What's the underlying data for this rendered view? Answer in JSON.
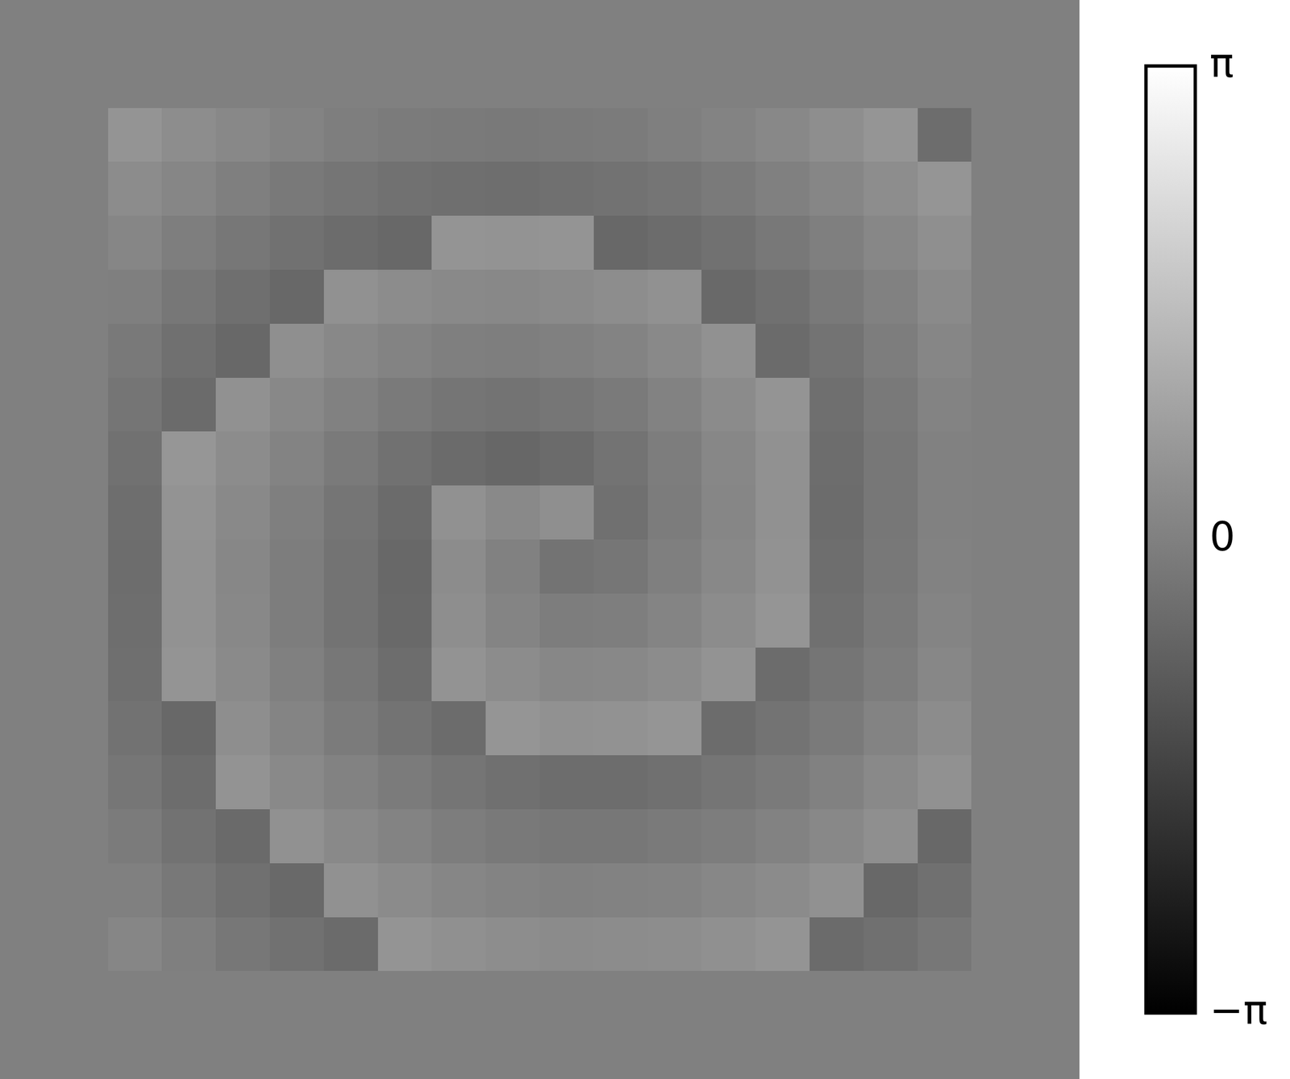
{
  "chart_data": {
    "type": "heatmap",
    "color": "gray",
    "tick_labels": false,
    "zlim": [
      -3.14159,
      3.14159
    ],
    "zticks": [
      {
        "value": -3.14159,
        "label": "−π"
      },
      0,
      {
        "value": 3.14159,
        "label": "π"
      }
    ],
    "z": [
      [
        0,
        0,
        0,
        0,
        0,
        0,
        0,
        0,
        0,
        0,
        0,
        0,
        0,
        0,
        0,
        0,
        0,
        0,
        0,
        0
      ],
      [
        0,
        0,
        0,
        0,
        0,
        0,
        0,
        0,
        0,
        0,
        0,
        0,
        0,
        0,
        0,
        0,
        0,
        0,
        0,
        0
      ],
      [
        0,
        0,
        0.5,
        0.34,
        0.2,
        0.08,
        -0.03,
        -0.1,
        -0.14,
        -0.15,
        -0.14,
        -0.1,
        -0.02,
        0.08,
        0.21,
        0.36,
        0.52,
        -0.46,
        0,
        0
      ],
      [
        0,
        0,
        0.32,
        0.15,
        -0.01,
        -0.15,
        -0.26,
        -0.35,
        -0.4,
        -0.42,
        -0.39,
        -0.34,
        -0.26,
        -0.14,
        0.0,
        0.16,
        0.34,
        0.53,
        0,
        0
      ],
      [
        0,
        0,
        0.15,
        -0.04,
        -0.21,
        -0.36,
        -0.49,
        -0.59,
        0.5,
        0.48,
        0.51,
        -0.58,
        -0.49,
        -0.35,
        -0.19,
        -0.01,
        0.18,
        0.39,
        0,
        0
      ],
      [
        0,
        0,
        -0.01,
        -0.21,
        -0.4,
        -0.57,
        0.43,
        0.32,
        0.24,
        0.22,
        0.26,
        0.33,
        0.44,
        -0.55,
        -0.37,
        -0.17,
        0.04,
        0.26,
        0,
        0
      ],
      [
        0,
        0,
        -0.15,
        -0.37,
        -0.57,
        0.39,
        0.22,
        0.08,
        -0.01,
        -0.04,
        0.0,
        0.09,
        0.24,
        0.42,
        -0.51,
        -0.3,
        -0.07,
        0.16,
        0,
        0
      ],
      [
        0,
        0,
        -0.27,
        -0.5,
        0.43,
        0.22,
        0.03,
        -0.14,
        -0.26,
        -0.31,
        -0.24,
        -0.13,
        0.06,
        0.28,
        0.51,
        -0.4,
        -0.16,
        0.09,
        0,
        0
      ],
      [
        0,
        0,
        -0.36,
        0.55,
        0.31,
        0.08,
        -0.14,
        -0.35,
        -0.51,
        -0.6,
        -0.5,
        -0.31,
        -0.06,
        0.19,
        0.44,
        -0.46,
        -0.21,
        0.04,
        0,
        0
      ],
      [
        0,
        0,
        -0.42,
        0.48,
        0.23,
        -0.02,
        -0.27,
        -0.5,
        0.42,
        0.23,
        0.39,
        -0.37,
        -0.09,
        0.17,
        0.42,
        -0.47,
        -0.22,
        0.04,
        0,
        0
      ],
      [
        0,
        0,
        -0.45,
        0.45,
        0.19,
        -0.06,
        -0.32,
        -0.57,
        0.31,
        0.04,
        -0.31,
        -0.24,
        -0.02,
        0.22,
        0.46,
        -0.44,
        -0.19,
        0.06,
        0,
        0
      ],
      [
        0,
        0,
        -0.44,
        0.46,
        0.21,
        -0.05,
        -0.3,
        -0.55,
        0.35,
        0.12,
        -0.07,
        -0.03,
        0.12,
        0.32,
        0.54,
        -0.38,
        -0.14,
        0.1,
        0,
        0
      ],
      [
        0,
        0,
        -0.4,
        0.5,
        0.26,
        0.02,
        -0.22,
        -0.45,
        0.49,
        0.31,
        0.19,
        0.21,
        0.32,
        0.48,
        -0.48,
        -0.27,
        -0.05,
        0.18,
        0,
        0
      ],
      [
        0,
        0,
        -0.33,
        -0.57,
        0.35,
        0.12,
        -0.1,
        -0.3,
        -0.48,
        0.53,
        0.44,
        0.46,
        0.53,
        -0.49,
        -0.31,
        -0.13,
        0.08,
        0.3,
        0,
        0
      ],
      [
        0,
        0,
        -0.24,
        -0.46,
        0.47,
        0.24,
        0.06,
        -0.12,
        -0.27,
        -0.39,
        -0.46,
        -0.45,
        -0.38,
        -0.27,
        -0.14,
        0.04,
        0.23,
        0.43,
        0,
        0
      ],
      [
        0,
        0,
        -0.12,
        -0.34,
        -0.54,
        0.42,
        0.24,
        0.08,
        -0.05,
        -0.15,
        -0.21,
        -0.2,
        -0.14,
        -0.06,
        0.07,
        0.22,
        0.39,
        -0.57,
        0,
        0
      ],
      [
        0,
        0,
        0.02,
        -0.19,
        -0.38,
        -0.56,
        0.43,
        0.29,
        0.17,
        0.09,
        0.04,
        0.05,
        0.09,
        0.18,
        0.28,
        0.42,
        -0.57,
        -0.39,
        0,
        0
      ],
      [
        0,
        0,
        0.17,
        -0.02,
        -0.2,
        -0.36,
        -0.51,
        0.51,
        0.41,
        0.33,
        0.29,
        0.3,
        0.34,
        0.41,
        0.51,
        -0.51,
        -0.37,
        -0.2,
        0,
        0
      ],
      [
        0,
        0,
        0,
        0,
        0,
        0,
        0,
        0,
        0,
        0,
        0,
        0,
        0,
        0,
        0,
        0,
        0,
        0,
        0,
        0
      ],
      [
        0,
        0,
        0,
        0,
        0,
        0,
        0,
        0,
        0,
        0,
        0,
        0,
        0,
        0,
        0,
        0,
        0,
        0,
        0,
        0
      ]
    ]
  }
}
